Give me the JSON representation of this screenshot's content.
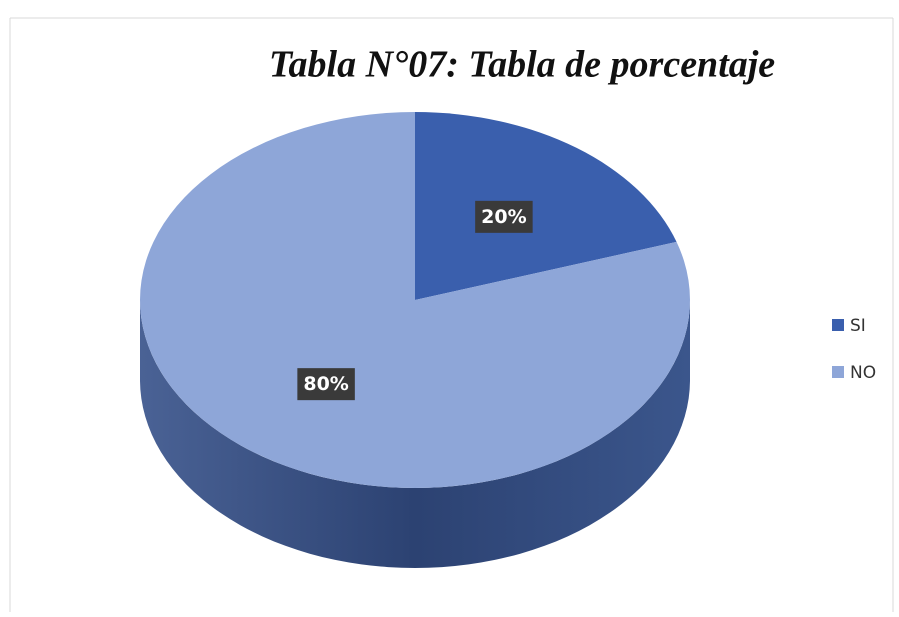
{
  "chart_data": {
    "type": "pie",
    "title": "Tabla N°07: Tabla de porcentaje",
    "categories": [
      "SI",
      "NO"
    ],
    "values": [
      20,
      80
    ],
    "value_labels": [
      "20%",
      "80%"
    ],
    "colors": [
      "#3a5fad",
      "#8ea6d8"
    ],
    "legend": "right"
  }
}
